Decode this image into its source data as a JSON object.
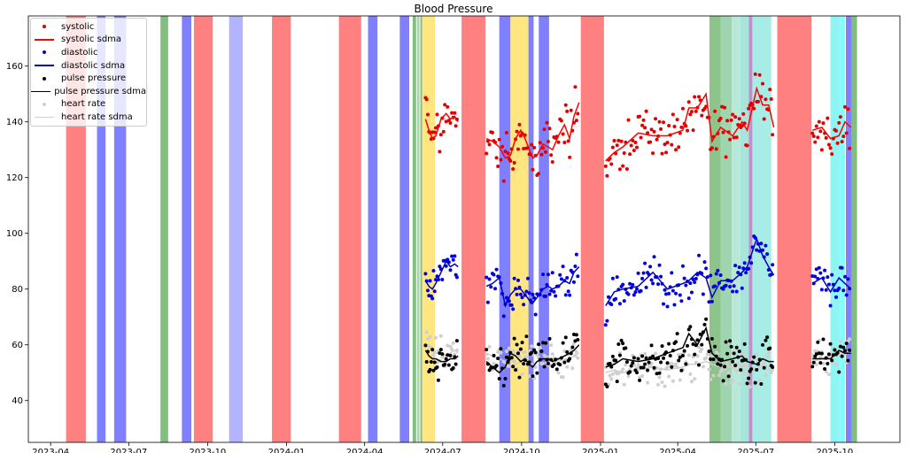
{
  "chart_data": {
    "type": "scatter",
    "title": "Blood Pressure",
    "xlabel": "",
    "ylabel": "",
    "xlim": [
      "2023-03-06",
      "2025-12-16"
    ],
    "ylim": [
      25,
      178
    ],
    "x_ticks": [
      "2023-04",
      "2023-07",
      "2023-10",
      "2024-01",
      "2024-04",
      "2024-07",
      "2024-10",
      "2025-01",
      "2025-04",
      "2025-07",
      "2025-10"
    ],
    "y_ticks": [
      40,
      60,
      80,
      100,
      120,
      140,
      160
    ],
    "grid": false,
    "legend_position": "top-left",
    "legend": [
      {
        "label": "systolic",
        "kind": "dot",
        "color": "#e00000"
      },
      {
        "label": "systolic sdma",
        "kind": "line",
        "color": "#ff0000"
      },
      {
        "label": "diastolic",
        "kind": "dot",
        "color": "#0000e0"
      },
      {
        "label": "diastolic sdma",
        "kind": "line",
        "color": "#0000c0"
      },
      {
        "label": "pulse pressure",
        "kind": "dot",
        "color": "#000000"
      },
      {
        "label": "pulse pressure sdma",
        "kind": "line",
        "color": "#000000"
      },
      {
        "label": "heart rate",
        "kind": "dot",
        "color": "#cfcfcf"
      },
      {
        "label": "heart rate sdma",
        "kind": "line",
        "color": "#cfcfcf"
      }
    ],
    "series_styles": {
      "systolic": {
        "color": "#e00000",
        "line": "#ff0000",
        "spread": 8
      },
      "diastolic": {
        "color": "#0000e0",
        "line": "#0000c0",
        "spread": 6
      },
      "pulse_pressure": {
        "color": "#000000",
        "line": "#000000",
        "spread": 7
      },
      "heart_rate": {
        "color": "#cfcfcf",
        "line": "#cfcfcf",
        "spread": 6
      }
    },
    "segments": [
      {
        "dates": [
          "2024-06-11",
          "2024-06-15",
          "2024-06-19",
          "2024-06-23",
          "2024-06-29",
          "2024-07-05",
          "2024-07-10",
          "2024-07-15",
          "2024-07-19"
        ],
        "systolic": [
          141,
          137,
          134,
          135,
          141,
          143,
          141,
          142,
          140
        ],
        "diastolic": [
          83,
          81,
          80,
          82,
          86,
          90,
          88,
          89,
          88
        ],
        "pulse_pressure": [
          58,
          56,
          55,
          55,
          54,
          54,
          55,
          55,
          56
        ],
        "heart_rate": [
          60,
          59,
          58,
          57,
          57,
          56,
          57,
          58,
          57
        ]
      },
      {
        "dates": [
          "2024-08-21",
          "2024-08-28",
          "2024-09-05",
          "2024-09-12",
          "2024-09-18",
          "2024-09-24",
          "2024-09-30",
          "2024-10-05",
          "2024-10-10",
          "2024-10-14",
          "2024-10-19",
          "2024-10-26",
          "2024-11-01",
          "2024-11-06",
          "2024-11-13",
          "2024-11-20",
          "2024-11-26",
          "2024-12-01",
          "2024-12-07"
        ],
        "systolic": [
          134,
          133,
          131,
          127,
          128,
          134,
          137,
          134,
          130,
          127,
          128,
          132,
          131,
          130,
          135,
          139,
          134,
          142,
          147
        ],
        "diastolic": [
          81,
          82,
          84,
          74,
          78,
          80,
          80,
          78,
          76,
          75,
          77,
          80,
          81,
          80,
          81,
          83,
          82,
          86,
          88
        ],
        "pulse_pressure": [
          54,
          52,
          50,
          52,
          57,
          56,
          54,
          55,
          53,
          52,
          54,
          55,
          55,
          54,
          55,
          56,
          57,
          58,
          60
        ],
        "heart_rate": [
          57,
          56,
          55,
          54,
          55,
          53,
          54,
          56,
          54,
          53,
          54,
          55,
          56,
          54,
          55,
          54,
          55,
          56,
          57
        ]
      },
      {
        "dates": [
          "2025-01-07",
          "2025-01-17",
          "2025-01-27",
          "2025-02-14",
          "2025-03-03",
          "2025-03-20",
          "2025-04-07",
          "2025-04-14",
          "2025-04-24",
          "2025-05-04",
          "2025-05-11",
          "2025-05-21",
          "2025-06-04",
          "2025-06-15",
          "2025-06-21",
          "2025-07-02",
          "2025-07-09",
          "2025-07-16",
          "2025-07-22"
        ],
        "systolic": [
          126,
          129,
          131,
          136,
          135,
          135,
          137,
          145,
          145,
          150,
          133,
          138,
          135,
          140,
          137,
          152,
          146,
          146,
          138
        ],
        "diastolic": [
          74,
          79,
          80,
          81,
          86,
          80,
          82,
          83,
          86,
          84,
          77,
          83,
          83,
          86,
          88,
          98,
          92,
          88,
          85
        ],
        "pulse_pressure": [
          52,
          53,
          55,
          54,
          55,
          57,
          59,
          64,
          60,
          66,
          57,
          54,
          55,
          56,
          54,
          53,
          55,
          54,
          54
        ],
        "heart_rate": [
          50,
          51,
          50,
          51,
          52,
          51,
          52,
          53,
          53,
          54,
          53,
          52,
          52,
          53,
          52,
          51,
          53,
          52,
          53
        ]
      },
      {
        "dates": [
          "2025-09-05",
          "2025-09-16",
          "2025-09-26",
          "2025-10-06",
          "2025-10-13",
          "2025-10-20"
        ],
        "systolic": [
          137,
          138,
          134,
          135,
          140,
          138
        ],
        "diastolic": [
          82,
          84,
          79,
          84,
          82,
          80
        ],
        "pulse_pressure": [
          55,
          55,
          55,
          58,
          57,
          57
        ],
        "heart_rate": [
          54,
          55,
          56,
          56,
          58,
          57
        ]
      }
    ],
    "bands": [
      {
        "start": "2023-04-19",
        "end": "2023-05-12",
        "color": "#ff8080"
      },
      {
        "start": "2023-05-25",
        "end": "2023-06-04",
        "color": "#8080ff"
      },
      {
        "start": "2023-06-14",
        "end": "2023-06-28",
        "color": "#8080ff"
      },
      {
        "start": "2023-08-07",
        "end": "2023-08-16",
        "color": "#80bf80"
      },
      {
        "start": "2023-09-01",
        "end": "2023-09-12",
        "color": "#8080ff"
      },
      {
        "start": "2023-09-15",
        "end": "2023-10-07",
        "color": "#ff8080"
      },
      {
        "start": "2023-10-26",
        "end": "2023-11-11",
        "color": "#b3b3ff"
      },
      {
        "start": "2023-12-15",
        "end": "2024-01-06",
        "color": "#ff8080"
      },
      {
        "start": "2024-03-02",
        "end": "2024-03-28",
        "color": "#ff8080"
      },
      {
        "start": "2024-04-05",
        "end": "2024-04-16",
        "color": "#8080ff"
      },
      {
        "start": "2024-05-12",
        "end": "2024-05-23",
        "color": "#8080ff"
      },
      {
        "start": "2024-05-27",
        "end": "2024-05-31",
        "color": "#80bf80"
      },
      {
        "start": "2024-06-01",
        "end": "2024-06-04",
        "color": "#a8d8a8"
      },
      {
        "start": "2024-06-05",
        "end": "2024-06-07",
        "color": "#80bf80"
      },
      {
        "start": "2024-06-07",
        "end": "2024-06-22",
        "color": "#ffe680"
      },
      {
        "start": "2024-07-23",
        "end": "2024-08-20",
        "color": "#ff8080"
      },
      {
        "start": "2024-09-05",
        "end": "2024-09-18",
        "color": "#8080ff"
      },
      {
        "start": "2024-09-18",
        "end": "2024-10-09",
        "color": "#ffe680"
      },
      {
        "start": "2024-10-09",
        "end": "2024-10-15",
        "color": "#8080ff"
      },
      {
        "start": "2024-10-21",
        "end": "2024-11-02",
        "color": "#8080ff"
      },
      {
        "start": "2024-12-09",
        "end": "2025-01-05",
        "color": "#ff8080"
      },
      {
        "start": "2025-05-08",
        "end": "2025-05-21",
        "color": "#8cc48c"
      },
      {
        "start": "2025-05-21",
        "end": "2025-06-03",
        "color": "#9ed4ae"
      },
      {
        "start": "2025-06-03",
        "end": "2025-06-13",
        "color": "#b8e8d8"
      },
      {
        "start": "2025-06-13",
        "end": "2025-06-23",
        "color": "#a8e4dc"
      },
      {
        "start": "2025-06-23",
        "end": "2025-06-27",
        "color": "#c090c8"
      },
      {
        "start": "2025-06-27",
        "end": "2025-07-19",
        "color": "#a8ece6"
      },
      {
        "start": "2025-07-26",
        "end": "2025-09-04",
        "color": "#ff8080"
      },
      {
        "start": "2025-09-26",
        "end": "2025-10-07",
        "color": "#90f4f4"
      },
      {
        "start": "2025-10-07",
        "end": "2025-10-13",
        "color": "#80ffff"
      },
      {
        "start": "2025-10-14",
        "end": "2025-10-21",
        "color": "#8080ff"
      },
      {
        "start": "2025-10-21",
        "end": "2025-10-27",
        "color": "#80bf80"
      }
    ]
  }
}
